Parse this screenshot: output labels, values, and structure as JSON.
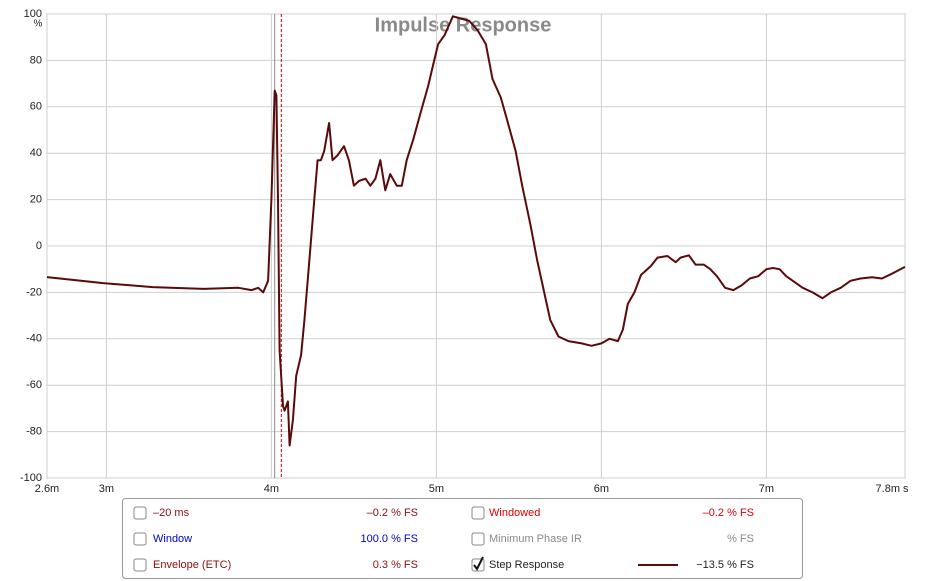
{
  "chart_data": {
    "type": "line",
    "title": "Impulse Response",
    "x_unit": "s",
    "y_unit": "%",
    "x": [
      2.64,
      2.98,
      3.28,
      3.59,
      3.8,
      3.88,
      3.92,
      3.95,
      3.98,
      4.0,
      4.02,
      4.03,
      4.04,
      4.05,
      4.07,
      4.08,
      4.1,
      4.11,
      4.13,
      4.15,
      4.18,
      4.2,
      4.23,
      4.26,
      4.28,
      4.3,
      4.32,
      4.35,
      4.37,
      4.4,
      4.44,
      4.47,
      4.5,
      4.53,
      4.57,
      4.6,
      4.63,
      4.66,
      4.69,
      4.72,
      4.76,
      4.79,
      4.82,
      4.86,
      4.91,
      4.95,
      4.98,
      5.01,
      5.05,
      5.1,
      5.15,
      5.2,
      5.25,
      5.3,
      5.34,
      5.39,
      5.43,
      5.48,
      5.52,
      5.57,
      5.61,
      5.65,
      5.69,
      5.74,
      5.8,
      5.88,
      5.94,
      6.0,
      6.05,
      6.1,
      6.13,
      6.16,
      6.2,
      6.24,
      6.3,
      6.34,
      6.4,
      6.45,
      6.48,
      6.53,
      6.57,
      6.62,
      6.66,
      6.7,
      6.75,
      6.8,
      6.85,
      6.9,
      6.95,
      7.0,
      7.04,
      7.08,
      7.12,
      7.16,
      7.22,
      7.28,
      7.34,
      7.39,
      7.45,
      7.51,
      7.57,
      7.64,
      7.7,
      7.76,
      7.84
    ],
    "series": [
      {
        "name": "Step Response",
        "color": "#5a0a0a",
        "readout": "−13.5 % FS",
        "values": [
          -13.4,
          -16,
          -17.7,
          -18.5,
          -18,
          -19,
          -18,
          -20,
          -15,
          20,
          67,
          65,
          20,
          -45,
          -69,
          -71,
          -67,
          -86,
          -75,
          -56,
          -47,
          -32,
          -6,
          20,
          37,
          37,
          41,
          53,
          37,
          39,
          43,
          37,
          26,
          28,
          29,
          26,
          29,
          37,
          24,
          31,
          26,
          26,
          37,
          46,
          59,
          69,
          78,
          87,
          91,
          99,
          98,
          97,
          93,
          87,
          72,
          64,
          54,
          41,
          26,
          9,
          -6,
          -19,
          -32,
          -39,
          -41,
          -42,
          -43,
          -42,
          -40,
          -41,
          -36,
          -25,
          -20,
          -12.5,
          -8.6,
          -5,
          -4.3,
          -7,
          -5,
          -4,
          -8,
          -8,
          -10,
          -13,
          -18,
          -19,
          -17,
          -14,
          -13,
          -10,
          -9.5,
          -10,
          -13,
          -15,
          -18,
          -20,
          -22.5,
          -20,
          -18,
          -15,
          -14,
          -13.5,
          -14,
          -12,
          -9
        ]
      }
    ],
    "xlim": [
      2.64,
      7.84
    ],
    "ylim": [
      -100,
      100
    ],
    "xticks": [
      {
        "value": 2.64,
        "label": "2.6m"
      },
      {
        "value": 3,
        "label": "3m"
      },
      {
        "value": 4,
        "label": "4m"
      },
      {
        "value": 5,
        "label": "5m"
      },
      {
        "value": 6,
        "label": "6m"
      },
      {
        "value": 7,
        "label": "7m"
      },
      {
        "value": 7.84,
        "label": "7.8m"
      }
    ],
    "yticks": [
      -100,
      -80,
      -60,
      -40,
      -20,
      0,
      20,
      40,
      60,
      80,
      100
    ],
    "grid": true,
    "markers": [
      {
        "x": 4.02,
        "color": "#8a8a8a",
        "style": "solid"
      },
      {
        "x": 4.06,
        "color": "#cc0000",
        "style": "dashed"
      }
    ]
  },
  "panel": {
    "items": [
      {
        "label": "–20 ms",
        "value": "–0.2 % FS",
        "checked": false,
        "color": "#8b1010"
      },
      {
        "label": "Windowed",
        "value": "–0.2 % FS",
        "checked": false,
        "color": "#e00000"
      },
      {
        "label": "Window",
        "value": "100.0 % FS",
        "checked": false,
        "color": "#0000d0"
      },
      {
        "label": "Minimum Phase IR",
        "value": "% FS",
        "checked": false,
        "color": "#8a8a8a"
      },
      {
        "label": "Envelope (ETC)",
        "value": "0.3 % FS",
        "checked": false,
        "color": "#8b1010"
      }
    ]
  }
}
